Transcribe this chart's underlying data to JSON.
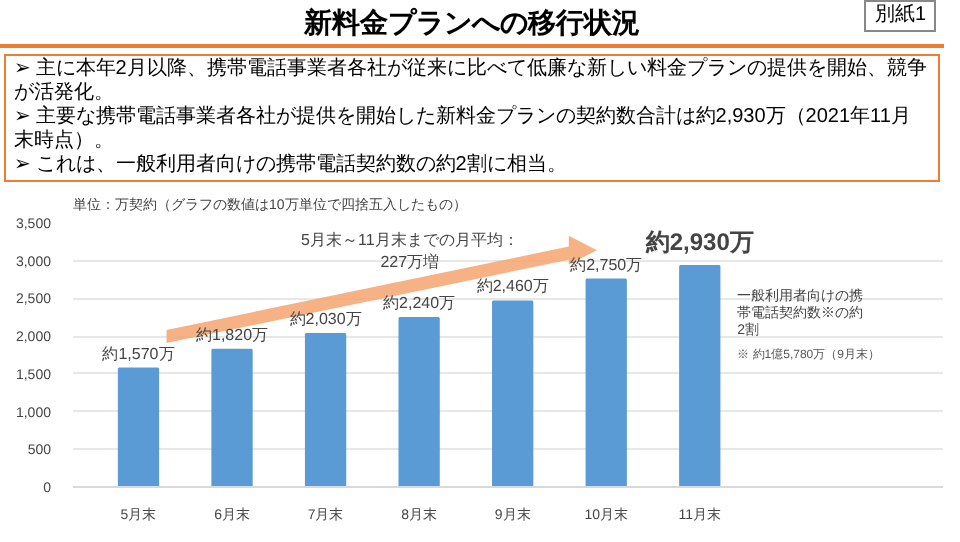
{
  "chart_data": {
    "type": "bar",
    "title": "新料金プランへの移行状況",
    "subtitle": "別紙1",
    "ylabel": "単位：万契約（グラフの数値は10万単位で四捨五入したもの）",
    "categories": [
      "5月末",
      "6月末",
      "7月末",
      "8月末",
      "9月末",
      "10月末",
      "11月末"
    ],
    "values": [
      1570,
      1820,
      2030,
      2240,
      2460,
      2750,
      2930
    ],
    "value_labels": [
      "約1,570万",
      "約1,820万",
      "約2,030万",
      "約2,240万",
      "約2,460万",
      "約2,750万",
      "約2,930万"
    ],
    "color": "#5b9bd5",
    "ylim": [
      0,
      3500
    ],
    "yticks": [
      0,
      {
        "value": 500,
        "label": "500"
      },
      {
        "value": 1000,
        "label": "1,000"
      },
      {
        "value": 1500,
        "label": "1,500"
      },
      {
        "value": 2000,
        "label": "2,000"
      },
      {
        "value": 2500,
        "label": "2,500"
      },
      {
        "value": 3000,
        "label": "3,000"
      },
      {
        "value": 3500,
        "label": "3,500"
      }
    ],
    "grid": "y",
    "annotations": [
      "➢ 主に本年2月以降、携帯電話事業者各社が従来に比べて低廉な新しい料金プランの提供を開始、競争が活発化。",
      "➢ 主要な携帯電話事業者各社が提供を開始した新料金プランの契約数合計は約2,930万（2021年11月末時点）。",
      "➢ これは、一般利用者向けの携帯電話契約数の約2割に相当。",
      "5月末～11月末までの月平均：227万増",
      "一般利用者向けの携帯電話契約数※の約2割",
      "※ 約1億5,780万（9月末）"
    ]
  }
}
